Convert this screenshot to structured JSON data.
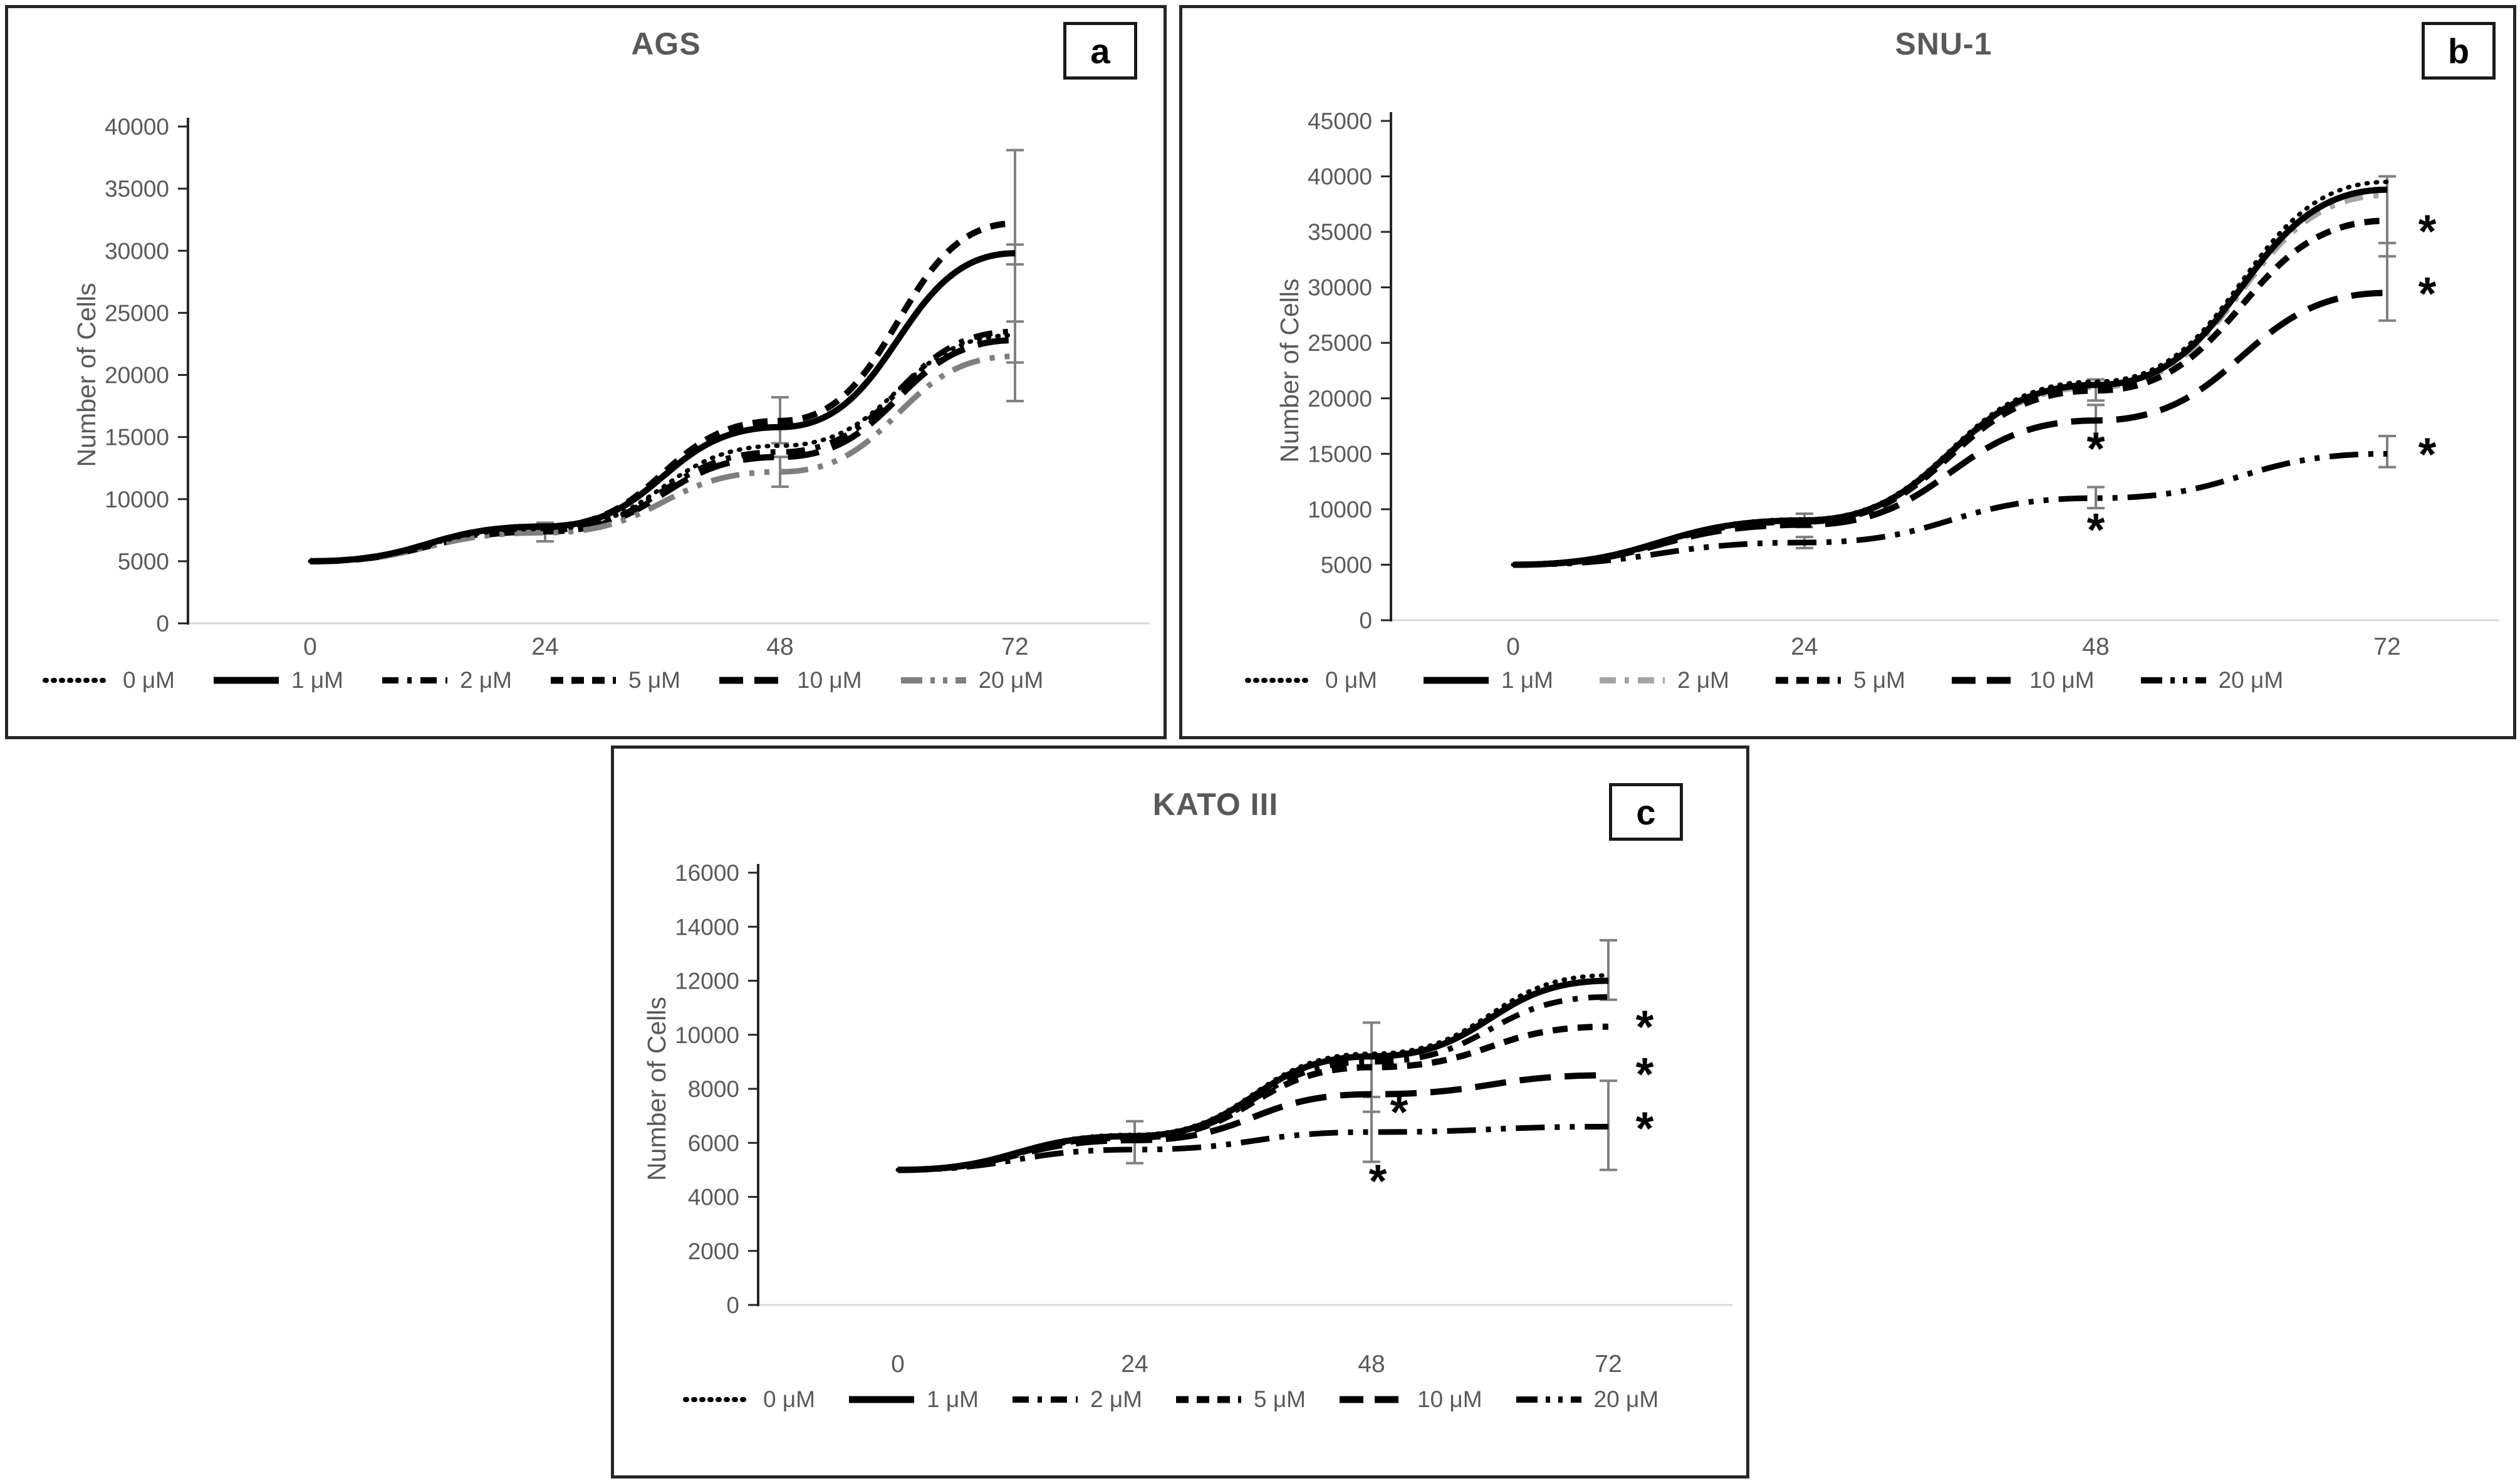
{
  "figure": {
    "ylabel": "Number of Cells",
    "x_hours": [
      "0",
      "24",
      "48",
      "72"
    ],
    "significance_marker": "*",
    "colors": {
      "line_black": "#000000",
      "line_gray": "#a6a6a6",
      "line_dim_gray": "#7f7f7f",
      "axis_line": "#262626",
      "baseline_gray": "#d9d9d9",
      "error_bar_gray": "#808080",
      "text_gray": "#595959"
    }
  },
  "chart_data": [
    {
      "id": "a",
      "panel_label": "a",
      "title": "AGS",
      "type": "line",
      "x": [
        0,
        24,
        48,
        72
      ],
      "xlabel": "",
      "ylabel": "Number of Cells",
      "ylim": [
        0,
        40000
      ],
      "ytick_step": 5000,
      "legend_position": "bottom",
      "grid": false,
      "series": [
        {
          "name": "0 μM",
          "style": "dotted",
          "color": "#000000",
          "values": [
            5000,
            7600,
            14300,
            23200
          ]
        },
        {
          "name": "1 μM",
          "style": "solid",
          "color": "#000000",
          "values": [
            5000,
            7800,
            15800,
            29800
          ]
        },
        {
          "name": "2 μM",
          "style": "dashdot",
          "color": "#000000",
          "values": [
            5000,
            7500,
            13800,
            23500
          ]
        },
        {
          "name": "5 μM",
          "style": "dashed",
          "color": "#000000",
          "values": [
            5000,
            7800,
            16300,
            32200
          ]
        },
        {
          "name": "10 μM",
          "style": "longdash",
          "color": "#000000",
          "values": [
            5000,
            7400,
            13400,
            22800
          ]
        },
        {
          "name": "20 μM",
          "style": "dashdotdot",
          "color": "#7f7f7f",
          "values": [
            5000,
            7300,
            12200,
            21500
          ]
        }
      ],
      "error_bars": [
        {
          "x": 24,
          "lo": 6600,
          "hi": 8100
        },
        {
          "x": 48,
          "lo": 14500,
          "hi": 18200
        },
        {
          "x": 48,
          "lo": 11000,
          "hi": 13400
        },
        {
          "x": 72,
          "lo": 17900,
          "hi": 38100
        },
        {
          "x": 72,
          "lo": 28900,
          "hi": 30500
        },
        {
          "x": 72,
          "lo": 21000,
          "hi": 24300
        }
      ],
      "asterisks": []
    },
    {
      "id": "b",
      "panel_label": "b",
      "title": "SNU-1",
      "type": "line",
      "x": [
        0,
        24,
        48,
        72
      ],
      "xlabel": "",
      "ylabel": "Number of Cells",
      "ylim": [
        0,
        45000
      ],
      "ytick_step": 5000,
      "legend_position": "bottom",
      "grid": false,
      "series": [
        {
          "name": "0 μM",
          "style": "dotted",
          "color": "#000000",
          "values": [
            5000,
            9100,
            21500,
            39500
          ]
        },
        {
          "name": "1 μM",
          "style": "solid",
          "color": "#000000",
          "values": [
            5000,
            9000,
            21200,
            38800
          ]
        },
        {
          "name": "2 μM",
          "style": "dashdot",
          "color": "#a6a6a6",
          "values": [
            5000,
            9000,
            21000,
            38300
          ]
        },
        {
          "name": "5 μM",
          "style": "dashed",
          "color": "#000000",
          "values": [
            5000,
            8900,
            20700,
            36000
          ]
        },
        {
          "name": "10 μM",
          "style": "longdash",
          "color": "#000000",
          "values": [
            5000,
            8600,
            18000,
            29500
          ]
        },
        {
          "name": "20 μM",
          "style": "dashdotdot",
          "color": "#000000",
          "values": [
            5000,
            7000,
            11000,
            15000
          ]
        }
      ],
      "error_bars": [
        {
          "x": 24,
          "lo": 8400,
          "hi": 9600
        },
        {
          "x": 24,
          "lo": 6500,
          "hi": 7500
        },
        {
          "x": 48,
          "lo": 19800,
          "hi": 21700
        },
        {
          "x": 48,
          "lo": 16400,
          "hi": 19400
        },
        {
          "x": 48,
          "lo": 10100,
          "hi": 12000
        },
        {
          "x": 72,
          "lo": 27000,
          "hi": 40000
        },
        {
          "x": 72,
          "lo": 32800,
          "hi": 34000
        },
        {
          "x": 72,
          "lo": 13800,
          "hi": 16600
        }
      ],
      "asterisks": [
        {
          "x": 48,
          "y": 15600,
          "dx": 0
        },
        {
          "x": 48,
          "y": 8300,
          "dx": 0
        },
        {
          "x": 72,
          "y": 35200,
          "dx": 64
        },
        {
          "x": 72,
          "y": 29600,
          "dx": 64
        },
        {
          "x": 72,
          "y": 15100,
          "dx": 64
        }
      ]
    },
    {
      "id": "c",
      "panel_label": "c",
      "title": "KATO III",
      "type": "line",
      "x": [
        0,
        24,
        48,
        72
      ],
      "xlabel": "",
      "ylabel": "Number of Cells",
      "ylim": [
        0,
        16000
      ],
      "ytick_step": 2000,
      "legend_position": "bottom",
      "grid": false,
      "series": [
        {
          "name": "0 μM",
          "style": "dotted",
          "color": "#000000",
          "values": [
            5000,
            6300,
            9300,
            12200
          ]
        },
        {
          "name": "1 μM",
          "style": "solid",
          "color": "#000000",
          "values": [
            5000,
            6250,
            9200,
            12000
          ]
        },
        {
          "name": "2 μM",
          "style": "dashdot",
          "color": "#000000",
          "values": [
            5000,
            6200,
            9000,
            11400
          ]
        },
        {
          "name": "5 μM",
          "style": "dashed",
          "color": "#000000",
          "values": [
            5000,
            6200,
            8800,
            10300
          ]
        },
        {
          "name": "10 μM",
          "style": "longdash",
          "color": "#000000",
          "values": [
            5000,
            6100,
            7800,
            8500
          ]
        },
        {
          "name": "20 μM",
          "style": "dashdotdot",
          "color": "#000000",
          "values": [
            5000,
            5750,
            6400,
            6600
          ]
        }
      ],
      "error_bars": [
        {
          "x": 24,
          "lo": 5250,
          "hi": 6800
        },
        {
          "x": 48,
          "lo": 5300,
          "hi": 10450
        },
        {
          "x": 48,
          "lo": 7150,
          "hi": 7700
        },
        {
          "x": 72,
          "lo": 11300,
          "hi": 13500
        },
        {
          "x": 72,
          "lo": 5000,
          "hi": 8300
        }
      ],
      "asterisks": [
        {
          "x": 48,
          "y": 7200,
          "dx": 44
        },
        {
          "x": 48,
          "y": 4650,
          "dx": 10
        },
        {
          "x": 72,
          "y": 10350,
          "dx": 58
        },
        {
          "x": 72,
          "y": 8600,
          "dx": 58
        },
        {
          "x": 72,
          "y": 6600,
          "dx": 58
        }
      ]
    }
  ]
}
